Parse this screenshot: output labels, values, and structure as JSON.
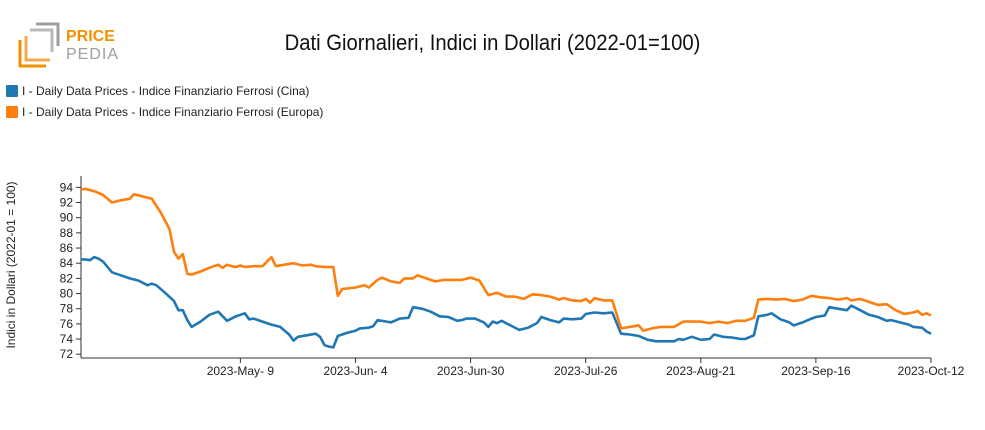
{
  "logo": {
    "brand_line1": "PRICE",
    "brand_line2": "PEDIA",
    "color_primary": "#f39200",
    "color_secondary": "#9e9e9e"
  },
  "chart_data": {
    "type": "line",
    "title": "Dati Giornalieri, Indici in Dollari (2022-01=100)",
    "xlabel": "",
    "ylabel": "Indici in Dollari (2022-01 = 100)",
    "ylim": [
      71.5,
      95.5
    ],
    "yticks": [
      72,
      74,
      76,
      78,
      80,
      82,
      84,
      86,
      88,
      90,
      92,
      94
    ],
    "xlim": [
      "2023-04-03",
      "2023-10-12"
    ],
    "xticks": [
      {
        "date": "2023-05-09",
        "label": "2023-May- 9"
      },
      {
        "date": "2023-06-04",
        "label": "2023-Jun- 4"
      },
      {
        "date": "2023-06-30",
        "label": "2023-Jun-30"
      },
      {
        "date": "2023-07-26",
        "label": "2023-Jul-26"
      },
      {
        "date": "2023-08-21",
        "label": "2023-Aug-21"
      },
      {
        "date": "2023-09-16",
        "label": "2023-Sep-16"
      },
      {
        "date": "2023-10-12",
        "label": "2023-Oct-12"
      }
    ],
    "grid": false,
    "legend_position": "top-left",
    "series": [
      {
        "name": "I - Daily Data Prices - Indice Finanziario Ferrosi (Cina)",
        "color": "#1f77b4",
        "points": [
          [
            "2023-04-03",
            84.5
          ],
          [
            "2023-04-04",
            84.5
          ],
          [
            "2023-04-05",
            84.4
          ],
          [
            "2023-04-06",
            84.8
          ],
          [
            "2023-04-07",
            84.6
          ],
          [
            "2023-04-08",
            84.2
          ],
          [
            "2023-04-10",
            82.8
          ],
          [
            "2023-04-12",
            82.4
          ],
          [
            "2023-04-14",
            82.0
          ],
          [
            "2023-04-16",
            81.7
          ],
          [
            "2023-04-18",
            81.1
          ],
          [
            "2023-04-19",
            81.3
          ],
          [
            "2023-04-20",
            81.1
          ],
          [
            "2023-04-22",
            80.1
          ],
          [
            "2023-04-24",
            79.0
          ],
          [
            "2023-04-25",
            77.8
          ],
          [
            "2023-04-26",
            77.8
          ],
          [
            "2023-04-27",
            76.5
          ],
          [
            "2023-04-28",
            75.6
          ],
          [
            "2023-04-30",
            76.3
          ],
          [
            "2023-05-02",
            77.2
          ],
          [
            "2023-05-04",
            77.6
          ],
          [
            "2023-05-06",
            76.4
          ],
          [
            "2023-05-08",
            77.0
          ],
          [
            "2023-05-10",
            77.4
          ],
          [
            "2023-05-11",
            76.6
          ],
          [
            "2023-05-12",
            76.7
          ],
          [
            "2023-05-14",
            76.3
          ],
          [
            "2023-05-16",
            75.9
          ],
          [
            "2023-05-18",
            75.6
          ],
          [
            "2023-05-20",
            74.6
          ],
          [
            "2023-05-21",
            73.8
          ],
          [
            "2023-05-22",
            74.3
          ],
          [
            "2023-05-24",
            74.5
          ],
          [
            "2023-05-26",
            74.7
          ],
          [
            "2023-05-27",
            74.3
          ],
          [
            "2023-05-28",
            73.2
          ],
          [
            "2023-05-29",
            73.0
          ],
          [
            "2023-05-30",
            72.9
          ],
          [
            "2023-05-31",
            74.4
          ],
          [
            "2023-06-02",
            74.8
          ],
          [
            "2023-06-04",
            75.1
          ],
          [
            "2023-06-05",
            75.4
          ],
          [
            "2023-06-07",
            75.5
          ],
          [
            "2023-06-08",
            75.7
          ],
          [
            "2023-06-09",
            76.5
          ],
          [
            "2023-06-11",
            76.3
          ],
          [
            "2023-06-12",
            76.2
          ],
          [
            "2023-06-14",
            76.7
          ],
          [
            "2023-06-16",
            76.8
          ],
          [
            "2023-06-17",
            78.2
          ],
          [
            "2023-06-19",
            78.0
          ],
          [
            "2023-06-21",
            77.6
          ],
          [
            "2023-06-23",
            77.0
          ],
          [
            "2023-06-25",
            76.9
          ],
          [
            "2023-06-27",
            76.4
          ],
          [
            "2023-06-28",
            76.5
          ],
          [
            "2023-06-29",
            76.7
          ],
          [
            "2023-07-01",
            76.7
          ],
          [
            "2023-07-03",
            76.2
          ],
          [
            "2023-07-04",
            75.6
          ],
          [
            "2023-07-05",
            76.3
          ],
          [
            "2023-07-06",
            76.1
          ],
          [
            "2023-07-07",
            76.4
          ],
          [
            "2023-07-09",
            75.8
          ],
          [
            "2023-07-11",
            75.2
          ],
          [
            "2023-07-13",
            75.5
          ],
          [
            "2023-07-15",
            76.1
          ],
          [
            "2023-07-16",
            76.9
          ],
          [
            "2023-07-18",
            76.5
          ],
          [
            "2023-07-20",
            76.2
          ],
          [
            "2023-07-21",
            76.7
          ],
          [
            "2023-07-23",
            76.6
          ],
          [
            "2023-07-25",
            76.7
          ],
          [
            "2023-07-26",
            77.3
          ],
          [
            "2023-07-28",
            77.5
          ],
          [
            "2023-07-30",
            77.4
          ],
          [
            "2023-08-01",
            77.5
          ],
          [
            "2023-08-03",
            74.7
          ],
          [
            "2023-08-05",
            74.6
          ],
          [
            "2023-08-07",
            74.4
          ],
          [
            "2023-08-09",
            73.9
          ],
          [
            "2023-08-11",
            73.7
          ],
          [
            "2023-08-13",
            73.7
          ],
          [
            "2023-08-15",
            73.7
          ],
          [
            "2023-08-16",
            74.0
          ],
          [
            "2023-08-17",
            73.9
          ],
          [
            "2023-08-19",
            74.3
          ],
          [
            "2023-08-21",
            73.9
          ],
          [
            "2023-08-23",
            74.0
          ],
          [
            "2023-08-24",
            74.6
          ],
          [
            "2023-08-26",
            74.3
          ],
          [
            "2023-08-28",
            74.2
          ],
          [
            "2023-08-30",
            74.0
          ],
          [
            "2023-08-31",
            74.0
          ],
          [
            "2023-09-02",
            74.5
          ],
          [
            "2023-09-03",
            77.0
          ],
          [
            "2023-09-05",
            77.2
          ],
          [
            "2023-09-06",
            77.4
          ],
          [
            "2023-09-08",
            76.6
          ],
          [
            "2023-09-10",
            76.2
          ],
          [
            "2023-09-11",
            75.8
          ],
          [
            "2023-09-13",
            76.2
          ],
          [
            "2023-09-15",
            76.7
          ],
          [
            "2023-09-16",
            76.9
          ],
          [
            "2023-09-18",
            77.1
          ],
          [
            "2023-09-19",
            78.2
          ],
          [
            "2023-09-21",
            78.0
          ],
          [
            "2023-09-23",
            77.8
          ],
          [
            "2023-09-24",
            78.4
          ],
          [
            "2023-09-26",
            77.8
          ],
          [
            "2023-09-28",
            77.2
          ],
          [
            "2023-09-30",
            76.9
          ],
          [
            "2023-10-02",
            76.4
          ],
          [
            "2023-10-03",
            76.5
          ],
          [
            "2023-10-05",
            76.2
          ],
          [
            "2023-10-07",
            75.9
          ],
          [
            "2023-10-08",
            75.6
          ],
          [
            "2023-10-10",
            75.5
          ],
          [
            "2023-10-11",
            75.0
          ],
          [
            "2023-10-12",
            74.7
          ]
        ]
      },
      {
        "name": "I - Daily Data Prices - Indice Finanziario Ferrosi (Europa)",
        "color": "#ff7f0e",
        "points": [
          [
            "2023-04-03",
            93.7
          ],
          [
            "2023-04-04",
            93.8
          ],
          [
            "2023-04-06",
            93.5
          ],
          [
            "2023-04-08",
            93.0
          ],
          [
            "2023-04-10",
            92.0
          ],
          [
            "2023-04-12",
            92.3
          ],
          [
            "2023-04-14",
            92.5
          ],
          [
            "2023-04-15",
            93.1
          ],
          [
            "2023-04-17",
            92.8
          ],
          [
            "2023-04-19",
            92.5
          ],
          [
            "2023-04-21",
            90.7
          ],
          [
            "2023-04-23",
            88.5
          ],
          [
            "2023-04-24",
            85.5
          ],
          [
            "2023-04-25",
            84.6
          ],
          [
            "2023-04-26",
            85.2
          ],
          [
            "2023-04-27",
            82.6
          ],
          [
            "2023-04-28",
            82.5
          ],
          [
            "2023-04-30",
            82.9
          ],
          [
            "2023-05-02",
            83.4
          ],
          [
            "2023-05-04",
            83.8
          ],
          [
            "2023-05-05",
            83.4
          ],
          [
            "2023-05-06",
            83.8
          ],
          [
            "2023-05-07",
            83.6
          ],
          [
            "2023-05-08",
            83.5
          ],
          [
            "2023-05-09",
            83.7
          ],
          [
            "2023-05-10",
            83.5
          ],
          [
            "2023-05-12",
            83.6
          ],
          [
            "2023-05-14",
            83.6
          ],
          [
            "2023-05-16",
            84.8
          ],
          [
            "2023-05-17",
            83.6
          ],
          [
            "2023-05-19",
            83.8
          ],
          [
            "2023-05-21",
            84.0
          ],
          [
            "2023-05-23",
            83.7
          ],
          [
            "2023-05-25",
            83.8
          ],
          [
            "2023-05-26",
            83.6
          ],
          [
            "2023-05-28",
            83.5
          ],
          [
            "2023-05-30",
            83.5
          ],
          [
            "2023-05-31",
            79.7
          ],
          [
            "2023-06-01",
            80.6
          ],
          [
            "2023-06-04",
            80.8
          ],
          [
            "2023-06-06",
            81.1
          ],
          [
            "2023-06-07",
            80.8
          ],
          [
            "2023-06-09",
            81.8
          ],
          [
            "2023-06-10",
            82.1
          ],
          [
            "2023-06-12",
            81.6
          ],
          [
            "2023-06-14",
            81.4
          ],
          [
            "2023-06-15",
            82.0
          ],
          [
            "2023-06-17",
            82.0
          ],
          [
            "2023-06-18",
            82.4
          ],
          [
            "2023-06-20",
            82.0
          ],
          [
            "2023-06-22",
            81.6
          ],
          [
            "2023-06-24",
            81.8
          ],
          [
            "2023-06-26",
            81.8
          ],
          [
            "2023-06-28",
            81.8
          ],
          [
            "2023-06-30",
            82.1
          ],
          [
            "2023-07-02",
            81.7
          ],
          [
            "2023-07-04",
            79.8
          ],
          [
            "2023-07-06",
            80.1
          ],
          [
            "2023-07-08",
            79.6
          ],
          [
            "2023-07-10",
            79.6
          ],
          [
            "2023-07-12",
            79.3
          ],
          [
            "2023-07-14",
            79.9
          ],
          [
            "2023-07-16",
            79.8
          ],
          [
            "2023-07-18",
            79.6
          ],
          [
            "2023-07-20",
            79.2
          ],
          [
            "2023-07-21",
            79.4
          ],
          [
            "2023-07-23",
            79.1
          ],
          [
            "2023-07-25",
            79.0
          ],
          [
            "2023-07-26",
            79.3
          ],
          [
            "2023-07-27",
            78.8
          ],
          [
            "2023-07-28",
            79.4
          ],
          [
            "2023-07-30",
            79.1
          ],
          [
            "2023-08-01",
            79.1
          ],
          [
            "2023-08-03",
            75.4
          ],
          [
            "2023-08-05",
            75.6
          ],
          [
            "2023-08-07",
            75.8
          ],
          [
            "2023-08-08",
            75.1
          ],
          [
            "2023-08-10",
            75.4
          ],
          [
            "2023-08-12",
            75.6
          ],
          [
            "2023-08-15",
            75.6
          ],
          [
            "2023-08-17",
            76.3
          ],
          [
            "2023-08-19",
            76.3
          ],
          [
            "2023-08-21",
            76.3
          ],
          [
            "2023-08-23",
            76.1
          ],
          [
            "2023-08-25",
            76.3
          ],
          [
            "2023-08-27",
            76.1
          ],
          [
            "2023-08-29",
            76.4
          ],
          [
            "2023-08-31",
            76.4
          ],
          [
            "2023-09-02",
            76.8
          ],
          [
            "2023-09-03",
            79.2
          ],
          [
            "2023-09-05",
            79.3
          ],
          [
            "2023-09-07",
            79.2
          ],
          [
            "2023-09-09",
            79.3
          ],
          [
            "2023-09-11",
            79.0
          ],
          [
            "2023-09-13",
            79.2
          ],
          [
            "2023-09-15",
            79.7
          ],
          [
            "2023-09-17",
            79.5
          ],
          [
            "2023-09-19",
            79.4
          ],
          [
            "2023-09-21",
            79.2
          ],
          [
            "2023-09-23",
            79.4
          ],
          [
            "2023-09-24",
            79.1
          ],
          [
            "2023-09-26",
            79.3
          ],
          [
            "2023-09-28",
            78.9
          ],
          [
            "2023-09-30",
            78.5
          ],
          [
            "2023-10-02",
            78.6
          ],
          [
            "2023-10-04",
            77.8
          ],
          [
            "2023-10-06",
            77.3
          ],
          [
            "2023-10-08",
            77.5
          ],
          [
            "2023-10-09",
            77.7
          ],
          [
            "2023-10-10",
            77.2
          ],
          [
            "2023-10-11",
            77.4
          ],
          [
            "2023-10-12",
            77.1
          ]
        ]
      }
    ]
  }
}
